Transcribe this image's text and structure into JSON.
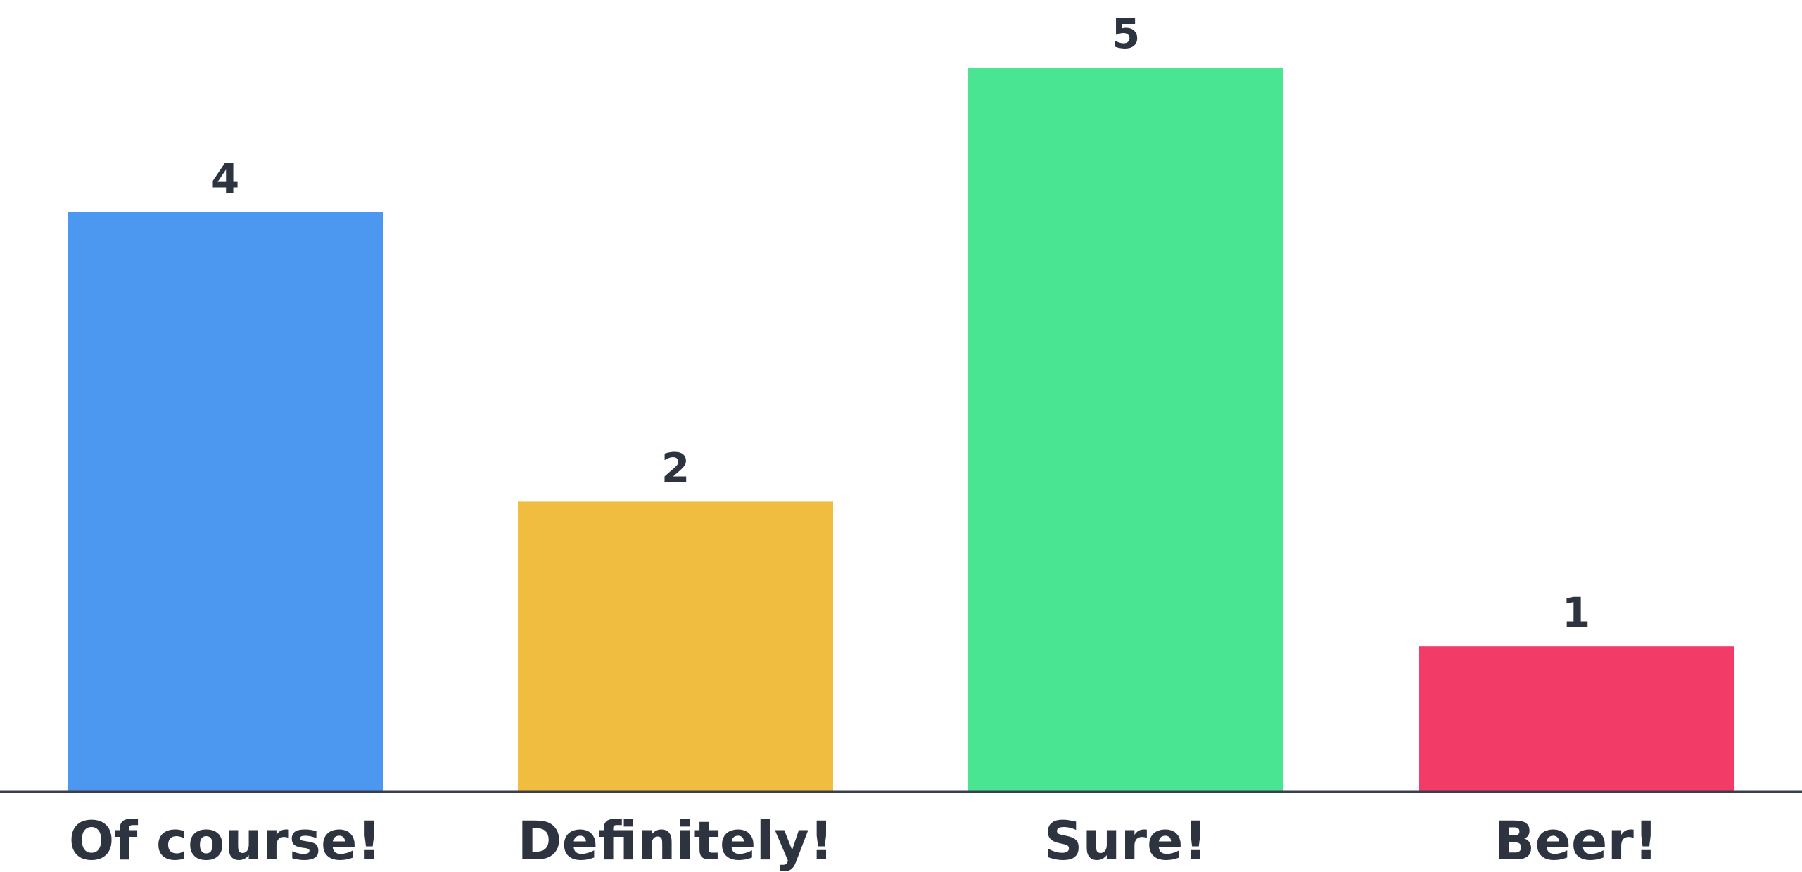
{
  "chart_data": {
    "type": "bar",
    "title": "",
    "xlabel": "",
    "ylabel": "",
    "ylim": [
      0,
      5
    ],
    "grid": false,
    "legend": "none",
    "categories": [
      "Of course!",
      "Definitely!",
      "Sure!",
      "Beer!"
    ],
    "values": [
      4,
      2,
      5,
      1
    ],
    "value_labels": [
      "4",
      "2",
      "5",
      "1"
    ],
    "colors": [
      "#4c97ef",
      "#f0bd40",
      "#49e593",
      "#f23b66"
    ],
    "text_color": "#2d3440",
    "axis_color": "#3a3f4a"
  }
}
